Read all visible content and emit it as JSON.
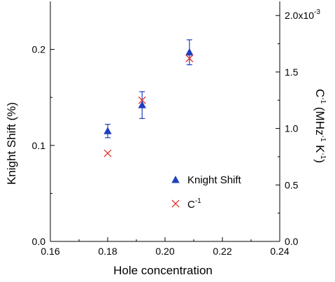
{
  "chart_data": {
    "type": "scatter",
    "xlabel": "Hole concentration",
    "ylabel_left": "Knight Shift (%)",
    "ylabel_right_base": "C",
    "ylabel_right_sup1": "-1",
    "ylabel_right_unit_a": " (MHz",
    "ylabel_right_sup2": "-1",
    "ylabel_right_unit_b": " K",
    "ylabel_right_sup3": "-1",
    "ylabel_right_close": ")",
    "xlim": [
      0.16,
      0.24
    ],
    "ylim_left": [
      0.0,
      0.25
    ],
    "ylim_right": [
      0.0,
      2.125
    ],
    "x_ticks": [
      "0.16",
      "0.18",
      "0.20",
      "0.22",
      "0.24"
    ],
    "y_left_ticks": [
      "0.0",
      "0.1",
      "0.2"
    ],
    "y_right_ticks": [
      "0.0",
      "0.5",
      "1.0",
      "1.5"
    ],
    "y_right_top_tick_base": "2.0x10",
    "y_right_top_tick_exp": "-3",
    "series": [
      {
        "name": "Knight Shift",
        "axis": "left",
        "marker": "triangle",
        "color": "#1f3fbf",
        "x": [
          0.18,
          0.192,
          0.2085
        ],
        "y": [
          0.115,
          0.142,
          0.197
        ],
        "err": [
          0.007,
          0.014,
          0.013
        ]
      },
      {
        "name": "C",
        "name_sup": "-1",
        "axis": "right",
        "marker": "x",
        "color": "#e0332b",
        "x": [
          0.18,
          0.192,
          0.2085
        ],
        "y": [
          0.78,
          1.25,
          1.62
        ]
      }
    ],
    "legend_position": "lower-right",
    "grid": false
  }
}
